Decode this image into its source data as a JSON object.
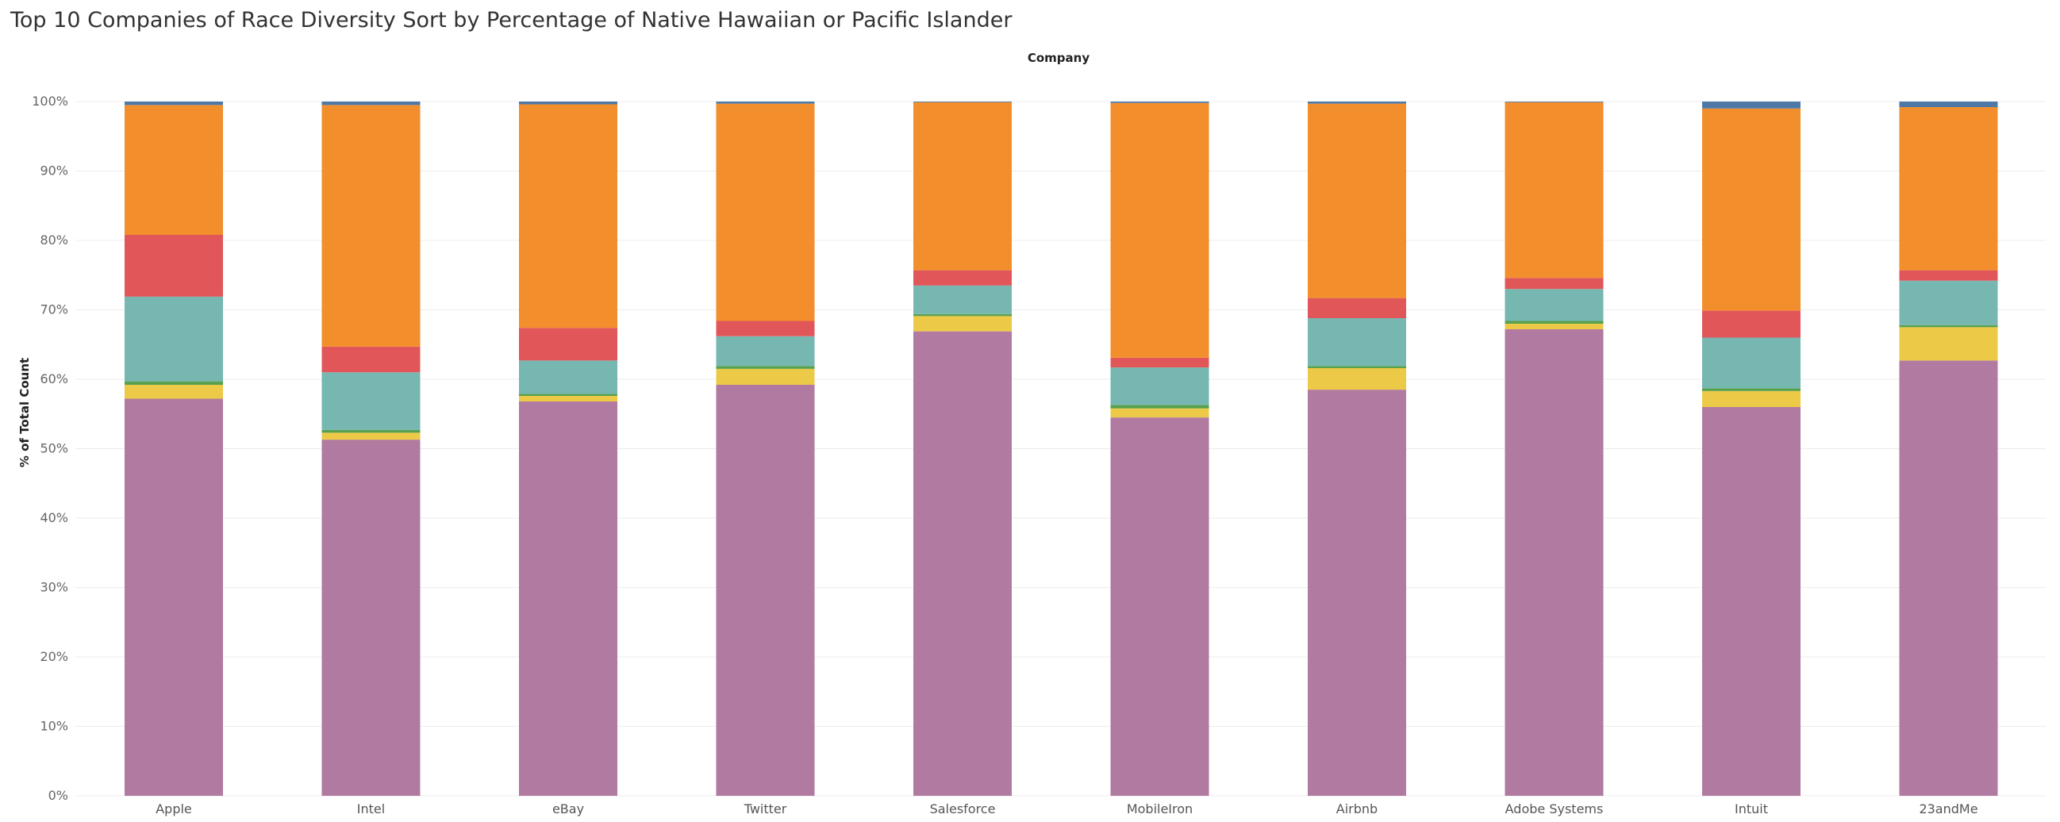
{
  "chart_data": {
    "type": "bar",
    "stacked": true,
    "title": "Top 10 Companies of Race Diversity Sort by Percentage of Native Hawaiian or Pacific Islander",
    "column_header": "Company",
    "ylabel": "% of Total Count",
    "ylim": [
      0,
      100
    ],
    "yticks": [
      "0%",
      "10%",
      "20%",
      "30%",
      "40%",
      "50%",
      "60%",
      "70%",
      "80%",
      "90%",
      "100%"
    ],
    "grid": true,
    "categories": [
      "Apple",
      "Intel",
      "eBay",
      "Twitter",
      "Salesforce",
      "MobileIron",
      "Airbnb",
      "Adobe Systems",
      "Intuit",
      "23andMe"
    ],
    "series": [
      {
        "color": "#b07aa1",
        "values": [
          57.2,
          51.3,
          56.8,
          59.2,
          66.9,
          54.5,
          58.5,
          67.2,
          56.0,
          62.7
        ]
      },
      {
        "color": "#edc948",
        "values": [
          2.0,
          1.0,
          0.8,
          2.3,
          2.2,
          1.3,
          3.1,
          0.8,
          2.3,
          4.8
        ]
      },
      {
        "color": "#59a14f",
        "values": [
          0.5,
          0.4,
          0.3,
          0.4,
          0.3,
          0.5,
          0.3,
          0.4,
          0.4,
          0.3
        ]
      },
      {
        "color": "#76b7b2",
        "values": [
          12.2,
          8.3,
          4.8,
          4.3,
          4.1,
          5.4,
          6.9,
          4.6,
          7.3,
          6.4
        ]
      },
      {
        "color": "#e15759",
        "values": [
          8.9,
          3.7,
          4.7,
          2.2,
          2.2,
          1.4,
          2.9,
          1.6,
          3.9,
          1.5
        ]
      },
      {
        "color": "#f28e2b",
        "values": [
          18.7,
          34.8,
          32.2,
          31.3,
          24.2,
          36.7,
          28.0,
          25.3,
          29.1,
          23.5
        ]
      },
      {
        "color": "#4e79a7",
        "values": [
          0.5,
          0.5,
          0.4,
          0.3,
          0.1,
          0.2,
          0.3,
          0.1,
          1.0,
          0.8
        ]
      }
    ]
  }
}
